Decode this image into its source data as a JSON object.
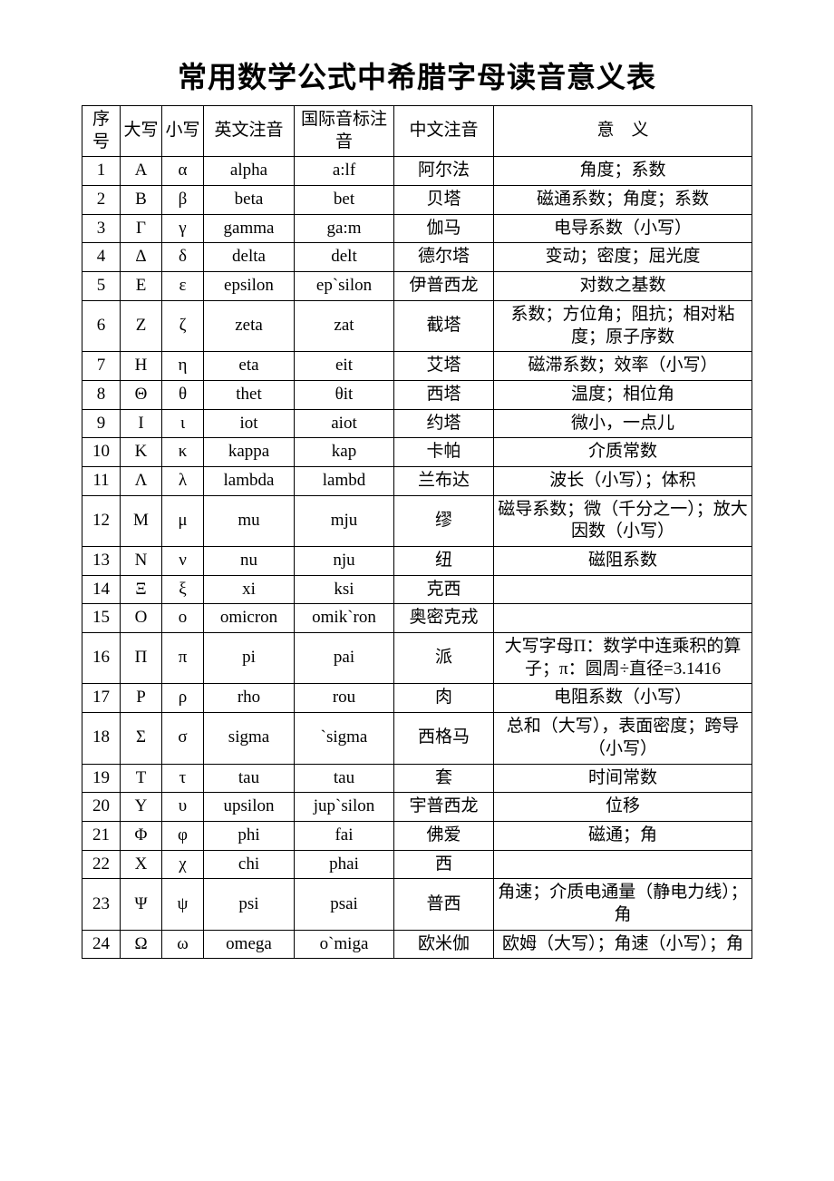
{
  "title": "常用数学公式中希腊字母读音意义表",
  "headers": {
    "idx": "序号",
    "upper": "大写",
    "lower": "小写",
    "eng": "英文注音",
    "ipa": "国际音标注音",
    "cn": "中文注音",
    "meaning": "意　义"
  },
  "rows": [
    {
      "idx": "1",
      "upper": "Α",
      "lower": "α",
      "eng": "alpha",
      "ipa": "a:lf",
      "cn": "阿尔法",
      "meaning": "角度；系数"
    },
    {
      "idx": "2",
      "upper": "Β",
      "lower": "β",
      "eng": "beta",
      "ipa": "bet",
      "cn": "贝塔",
      "meaning": "磁通系数；角度；系数"
    },
    {
      "idx": "3",
      "upper": "Γ",
      "lower": "γ",
      "eng": "gamma",
      "ipa": "ga:m",
      "cn": "伽马",
      "meaning": "电导系数（小写）"
    },
    {
      "idx": "4",
      "upper": "Δ",
      "lower": "δ",
      "eng": "delta",
      "ipa": "delt",
      "cn": "德尔塔",
      "meaning": "变动；密度；屈光度"
    },
    {
      "idx": "5",
      "upper": "Ε",
      "lower": "ε",
      "eng": "epsilon",
      "ipa": "ep`silon",
      "cn": "伊普西龙",
      "meaning": "对数之基数"
    },
    {
      "idx": "6",
      "upper": "Ζ",
      "lower": "ζ",
      "eng": "zeta",
      "ipa": "zat",
      "cn": "截塔",
      "meaning": "系数；方位角；阻抗；相对粘度；原子序数"
    },
    {
      "idx": "7",
      "upper": "Η",
      "lower": "η",
      "eng": "eta",
      "ipa": "eit",
      "cn": "艾塔",
      "meaning": "磁滞系数；效率（小写）"
    },
    {
      "idx": "8",
      "upper": "Θ",
      "lower": "θ",
      "eng": "thet",
      "ipa": "θit",
      "cn": "西塔",
      "meaning": "温度；相位角"
    },
    {
      "idx": "9",
      "upper": "Ι",
      "lower": "ι",
      "eng": "iot",
      "ipa": "aiot",
      "cn": "约塔",
      "meaning": "微小，一点儿"
    },
    {
      "idx": "10",
      "upper": "Κ",
      "lower": "κ",
      "eng": "kappa",
      "ipa": "kap",
      "cn": "卡帕",
      "meaning": "介质常数"
    },
    {
      "idx": "11",
      "upper": "Λ",
      "lower": "λ",
      "eng": "lambda",
      "ipa": "lambd",
      "cn": "兰布达",
      "meaning": "波长（小写）；体积"
    },
    {
      "idx": "12",
      "upper": "Μ",
      "lower": "μ",
      "eng": "mu",
      "ipa": "mju",
      "cn": "缪",
      "meaning": "磁导系数；微（千分之一）；放大因数（小写）"
    },
    {
      "idx": "13",
      "upper": "Ν",
      "lower": "ν",
      "eng": "nu",
      "ipa": "nju",
      "cn": "纽",
      "meaning": "磁阻系数"
    },
    {
      "idx": "14",
      "upper": "Ξ",
      "lower": "ξ",
      "eng": "xi",
      "ipa": "ksi",
      "cn": "克西",
      "meaning": ""
    },
    {
      "idx": "15",
      "upper": "Ο",
      "lower": "ο",
      "eng": "omicron",
      "ipa": "omik`ron",
      "cn": "奥密克戎",
      "meaning": ""
    },
    {
      "idx": "16",
      "upper": "Π",
      "lower": "π",
      "eng": "pi",
      "ipa": "pai",
      "cn": "派",
      "meaning": "大写字母Π：数学中连乘积的算子；π：圆周÷直径=3.1416"
    },
    {
      "idx": "17",
      "upper": "Ρ",
      "lower": "ρ",
      "eng": "rho",
      "ipa": "rou",
      "cn": "肉",
      "meaning": "电阻系数（小写）"
    },
    {
      "idx": "18",
      "upper": "Σ",
      "lower": "σ",
      "eng": "sigma",
      "ipa": "`sigma",
      "cn": "西格马",
      "meaning": "总和（大写），表面密度；跨导（小写）"
    },
    {
      "idx": "19",
      "upper": "Τ",
      "lower": "τ",
      "eng": "tau",
      "ipa": "tau",
      "cn": "套",
      "meaning": "时间常数"
    },
    {
      "idx": "20",
      "upper": "Υ",
      "lower": "υ",
      "eng": "upsilon",
      "ipa": "jup`silon",
      "cn": "宇普西龙",
      "meaning": "位移"
    },
    {
      "idx": "21",
      "upper": "Φ",
      "lower": "φ",
      "eng": "phi",
      "ipa": "fai",
      "cn": "佛爱",
      "meaning": "磁通；角"
    },
    {
      "idx": "22",
      "upper": "Χ",
      "lower": "χ",
      "eng": "chi",
      "ipa": "phai",
      "cn": "西",
      "meaning": ""
    },
    {
      "idx": "23",
      "upper": "Ψ",
      "lower": "ψ",
      "eng": "psi",
      "ipa": "psai",
      "cn": "普西",
      "meaning": "角速；介质电通量（静电力线）；角"
    },
    {
      "idx": "24",
      "upper": "Ω",
      "lower": "ω",
      "eng": "omega",
      "ipa": "o`miga",
      "cn": "欧米伽",
      "meaning": "欧姆（大写）；角速（小写）；角"
    }
  ]
}
